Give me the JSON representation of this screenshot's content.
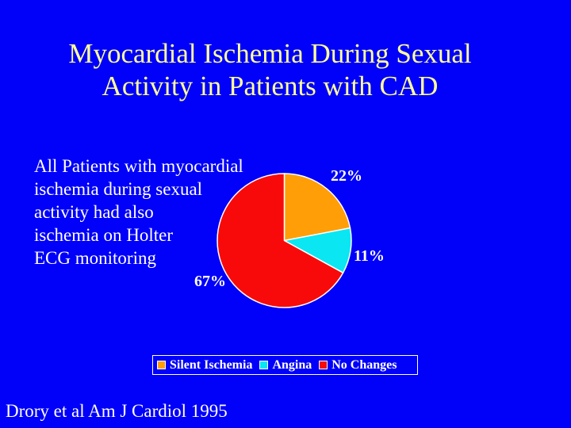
{
  "slide": {
    "title": "Myocardial Ischemia During Sexual\nActivity in Patients with CAD",
    "body_text": "All Patients with myocardial\nischemia during sexual\nactivity had also\nischemia on Holter\nECG monitoring",
    "footer": "Drory et al Am J Cardiol 1995"
  },
  "colors": {
    "background": "#0101FA",
    "title_text": "#FFFF99",
    "body_text": "#FFFFFF"
  },
  "chart_data": {
    "type": "pie",
    "title": "",
    "start_angle_deg": 0,
    "direction": "clockwise",
    "slices": [
      {
        "label": "Silent Ischemia",
        "value": 22,
        "pct_label": "22%",
        "color": "#FF9E06"
      },
      {
        "label": "Angina",
        "value": 11,
        "pct_label": "11%",
        "color": "#0AE6F2"
      },
      {
        "label": "No Changes",
        "value": 67,
        "pct_label": "67%",
        "color": "#F90A0A"
      }
    ],
    "outline_color": "#FFFFFF",
    "legend_position": "bottom"
  }
}
